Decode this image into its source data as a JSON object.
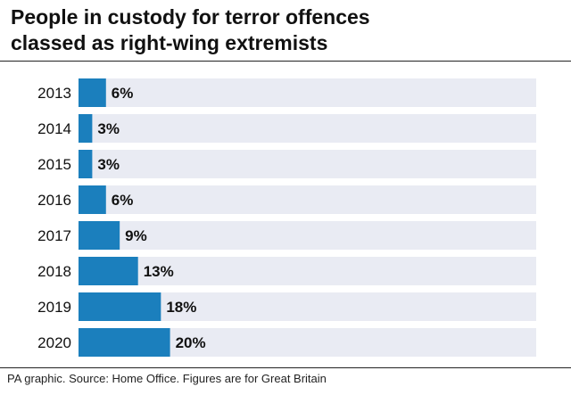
{
  "title": "People in custody for terror offences\nclassed as right-wing extremists",
  "source": "PA graphic. Source: Home Office. Figures are for Great Britain",
  "colors": {
    "bar": "#1b7fbd",
    "track": "#e9ebf3",
    "text": "#111111"
  },
  "chart_data": {
    "type": "bar",
    "orientation": "horizontal",
    "categories": [
      "2013",
      "2014",
      "2015",
      "2016",
      "2017",
      "2018",
      "2019",
      "2020"
    ],
    "values": [
      6,
      3,
      3,
      6,
      9,
      13,
      18,
      20
    ],
    "value_labels": [
      "6%",
      "3%",
      "3%",
      "6%",
      "9%",
      "13%",
      "18%",
      "20%"
    ],
    "unit": "%",
    "xlim": [
      0,
      100
    ],
    "title": "People in custody for terror offences classed as right-wing extremists",
    "xlabel": "",
    "ylabel": ""
  }
}
